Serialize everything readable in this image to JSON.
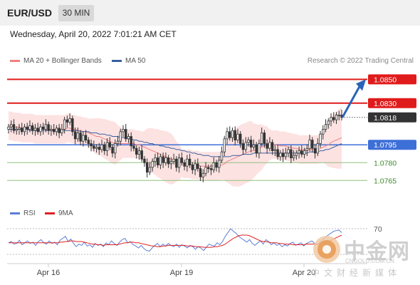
{
  "header": {
    "pair": "EUR/USD",
    "timeframe": "30 MIN",
    "datetime": "Wednesday, April 20, 2022 7:01:21 AM CET"
  },
  "legend": {
    "ma20": {
      "label": "MA 20 + Bollinger Bands",
      "color": "#f08080"
    },
    "ma50": {
      "label": "MA 50",
      "color": "#3a5f9f"
    },
    "copyright": "Research © 2022 Trading Central"
  },
  "rsi_legend": {
    "rsi": {
      "label": "RSI",
      "color": "#5b7fd6"
    },
    "ma": {
      "label": "9MA",
      "color": "#e02020"
    }
  },
  "watermark": {
    "brand": "中金网",
    "url": "CNGOLD.COM.CN",
    "sub": "中文财经新媒体"
  },
  "chart_data": [
    {
      "type": "candlestick",
      "ylim": [
        1.0755,
        1.0858
      ],
      "x_ticks": [
        "Apr 16",
        "Apr 19",
        "Apr 20"
      ],
      "levels": [
        {
          "label": "1.0850",
          "value": 1.085,
          "style": "resistance",
          "color": "#e01b1b"
        },
        {
          "label": "1.0830",
          "value": 1.083,
          "style": "resistance",
          "color": "#e01b1b"
        },
        {
          "label": "1.0818",
          "value": 1.0818,
          "style": "current",
          "color": "#333333"
        },
        {
          "label": "1.0795",
          "value": 1.0795,
          "style": "pivot",
          "color": "#3d6fd8"
        },
        {
          "label": "1.0780",
          "value": 1.078,
          "style": "support",
          "color": "#3b8a2c"
        },
        {
          "label": "1.0765",
          "value": 1.0765,
          "style": "support",
          "color": "#3b8a2c"
        }
      ],
      "close": [
        1.081,
        1.0812,
        1.0807,
        1.0808,
        1.0809,
        1.0806,
        1.081,
        1.0808,
        1.0811,
        1.0807,
        1.0809,
        1.0806,
        1.081,
        1.0808,
        1.0812,
        1.0807,
        1.0808,
        1.0806,
        1.0809,
        1.0805,
        1.0808,
        1.0816,
        1.0814,
        1.0817,
        1.0806,
        1.08,
        1.0805,
        1.0798,
        1.0803,
        1.0799,
        1.0796,
        1.0794,
        1.0792,
        1.0793,
        1.0791,
        1.0795,
        1.079,
        1.0797,
        1.0793,
        1.0788,
        1.0796,
        1.0798,
        1.0806,
        1.0808,
        1.08,
        1.0802,
        1.0794,
        1.0792,
        1.0787,
        1.079,
        1.0783,
        1.078,
        1.0772,
        1.0776,
        1.0781,
        1.0784,
        1.0778,
        1.0785,
        1.078,
        1.0784,
        1.0779,
        1.0781,
        1.0783,
        1.0776,
        1.0784,
        1.078,
        1.0777,
        1.0783,
        1.0778,
        1.0774,
        1.0779,
        1.0775,
        1.0768,
        1.0771,
        1.0776,
        1.0775,
        1.0774,
        1.078,
        1.0776,
        1.0782,
        1.0789,
        1.08,
        1.0806,
        1.0801,
        1.0807,
        1.0799,
        1.0804,
        1.0796,
        1.0791,
        1.0797,
        1.0799,
        1.0793,
        1.0795,
        1.0788,
        1.0796,
        1.0805,
        1.0796,
        1.0792,
        1.0797,
        1.079,
        1.0791,
        1.0785,
        1.0788,
        1.0785,
        1.0788,
        1.0791,
        1.0784,
        1.0786,
        1.0788,
        1.079,
        1.0787,
        1.079,
        1.0792,
        1.0799,
        1.0792,
        1.0788,
        1.0796,
        1.0804,
        1.0808,
        1.0812,
        1.0815,
        1.0818,
        1.0816,
        1.082,
        1.082,
        1.0818
      ],
      "ma20": [
        1.0811,
        1.0811,
        1.081,
        1.081,
        1.081,
        1.0809,
        1.0809,
        1.0809,
        1.0809,
        1.0809,
        1.0808,
        1.0808,
        1.0808,
        1.0808,
        1.0808,
        1.0808,
        1.0808,
        1.0808,
        1.0808,
        1.0808,
        1.0808,
        1.0808,
        1.0809,
        1.0809,
        1.0808,
        1.0808,
        1.0807,
        1.0807,
        1.0806,
        1.0806,
        1.0805,
        1.0804,
        1.0803,
        1.0802,
        1.0802,
        1.0801,
        1.08,
        1.0799,
        1.0798,
        1.0797,
        1.0796,
        1.0796,
        1.0796,
        1.0796,
        1.0796,
        1.0796,
        1.0796,
        1.0796,
        1.0795,
        1.0795,
        1.0794,
        1.0793,
        1.0792,
        1.0791,
        1.079,
        1.0789,
        1.0788,
        1.0787,
        1.0786,
        1.0785,
        1.0784,
        1.0783,
        1.0782,
        1.0781,
        1.078,
        1.078,
        1.0779,
        1.0779,
        1.0779,
        1.0778,
        1.0778,
        1.0778,
        1.0777,
        1.0777,
        1.0777,
        1.0777,
        1.0777,
        1.0777,
        1.0777,
        1.0777,
        1.0778,
        1.0779,
        1.0781,
        1.0782,
        1.0783,
        1.0784,
        1.0785,
        1.0786,
        1.0787,
        1.0788,
        1.0789,
        1.079,
        1.079,
        1.0791,
        1.0792,
        1.0793,
        1.0794,
        1.0795,
        1.0795,
        1.0795,
        1.0795,
        1.0795,
        1.0794,
        1.0794,
        1.0794,
        1.0793,
        1.0793,
        1.0792,
        1.0792,
        1.0791,
        1.0791,
        1.0791,
        1.0791,
        1.0791,
        1.0791,
        1.0791,
        1.0791,
        1.0792,
        1.0793,
        1.0794,
        1.0795,
        1.0797,
        1.0798,
        1.0799,
        1.08,
        1.0801
      ],
      "ma50": [
        1.0808,
        1.0808,
        1.0808,
        1.0808,
        1.0808,
        1.0808,
        1.0808,
        1.0808,
        1.0807,
        1.0807,
        1.0807,
        1.0807,
        1.0807,
        1.0807,
        1.0807,
        1.0807,
        1.0807,
        1.0807,
        1.0807,
        1.0807,
        1.0807,
        1.0807,
        1.0807,
        1.0807,
        1.0807,
        1.0807,
        1.0807,
        1.0806,
        1.0806,
        1.0806,
        1.0806,
        1.0805,
        1.0805,
        1.0805,
        1.0804,
        1.0804,
        1.0804,
        1.0803,
        1.0803,
        1.0802,
        1.0802,
        1.0802,
        1.0801,
        1.0801,
        1.0801,
        1.08,
        1.08,
        1.0799,
        1.0799,
        1.0798,
        1.0798,
        1.0797,
        1.0797,
        1.0796,
        1.0796,
        1.0795,
        1.0795,
        1.0794,
        1.0794,
        1.0793,
        1.0793,
        1.0792,
        1.0792,
        1.0791,
        1.0791,
        1.079,
        1.079,
        1.0789,
        1.0789,
        1.0788,
        1.0788,
        1.0787,
        1.0787,
        1.0786,
        1.0786,
        1.0786,
        1.0785,
        1.0785,
        1.0785,
        1.0785,
        1.0785,
        1.0785,
        1.0785,
        1.0785,
        1.0786,
        1.0786,
        1.0786,
        1.0786,
        1.0787,
        1.0787,
        1.0787,
        1.0787,
        1.0788,
        1.0788,
        1.0788,
        1.0788,
        1.0788,
        1.0788,
        1.0788,
        1.0788,
        1.0788,
        1.0788,
        1.0788,
        1.0788,
        1.0788,
        1.0788,
        1.0788,
        1.0788,
        1.0788,
        1.0788,
        1.0788,
        1.0788,
        1.0788,
        1.0789,
        1.0789,
        1.0789,
        1.0789,
        1.079,
        1.079,
        1.0791,
        1.0791,
        1.0792,
        1.0793,
        1.0794,
        1.0795,
        1.0796
      ],
      "arrow_target": 1.085
    },
    {
      "type": "line",
      "title": "RSI",
      "ylim": [
        20,
        80
      ],
      "levels": [
        {
          "label": "70",
          "value": 70
        }
      ],
      "rsi": [
        48,
        50,
        46,
        47,
        52,
        45,
        48,
        51,
        47,
        49,
        44,
        50,
        53,
        48,
        46,
        51,
        47,
        49,
        45,
        52,
        55,
        58,
        50,
        54,
        47,
        42,
        46,
        44,
        49,
        43,
        45,
        41,
        47,
        44,
        46,
        42,
        48,
        45,
        51,
        47,
        44,
        49,
        53,
        55,
        48,
        50,
        45,
        43,
        40,
        44,
        39,
        36,
        35,
        40,
        44,
        47,
        42,
        46,
        43,
        47,
        44,
        42,
        46,
        41,
        45,
        43,
        40,
        44,
        42,
        38,
        42,
        40,
        36,
        41,
        46,
        44,
        43,
        48,
        45,
        50,
        58,
        64,
        70,
        66,
        63,
        58,
        55,
        52,
        49,
        53,
        47,
        44,
        48,
        51,
        46,
        53,
        50,
        45,
        48,
        44,
        46,
        42,
        45,
        43,
        47,
        49,
        44,
        46,
        48,
        43,
        47,
        49,
        51,
        47,
        45,
        49,
        53,
        57,
        60,
        63,
        66,
        67,
        68,
        64
      ],
      "ma": [
        48,
        48,
        48,
        48,
        48,
        48,
        48,
        48,
        48,
        48,
        48,
        48,
        48,
        48,
        48,
        48,
        48,
        48,
        48,
        49,
        49,
        50,
        50,
        51,
        51,
        50,
        50,
        50,
        49,
        48,
        47,
        46,
        46,
        45,
        45,
        44,
        45,
        45,
        45,
        45,
        45,
        46,
        47,
        48,
        48,
        49,
        49,
        48,
        48,
        47,
        46,
        45,
        44,
        43,
        43,
        42,
        42,
        43,
        43,
        44,
        44,
        44,
        44,
        44,
        44,
        44,
        43,
        43,
        43,
        42,
        42,
        42,
        41,
        41,
        41,
        41,
        42,
        42,
        43,
        44,
        46,
        49,
        52,
        55,
        57,
        59,
        60,
        60,
        60,
        59,
        57,
        55,
        53,
        51,
        50,
        50,
        49,
        48,
        48,
        48,
        47,
        47,
        46,
        46,
        46,
        45,
        45,
        45,
        45,
        45,
        46,
        46,
        46,
        46,
        46,
        47,
        48,
        49,
        50,
        52,
        54,
        56,
        58,
        60
      ]
    }
  ]
}
